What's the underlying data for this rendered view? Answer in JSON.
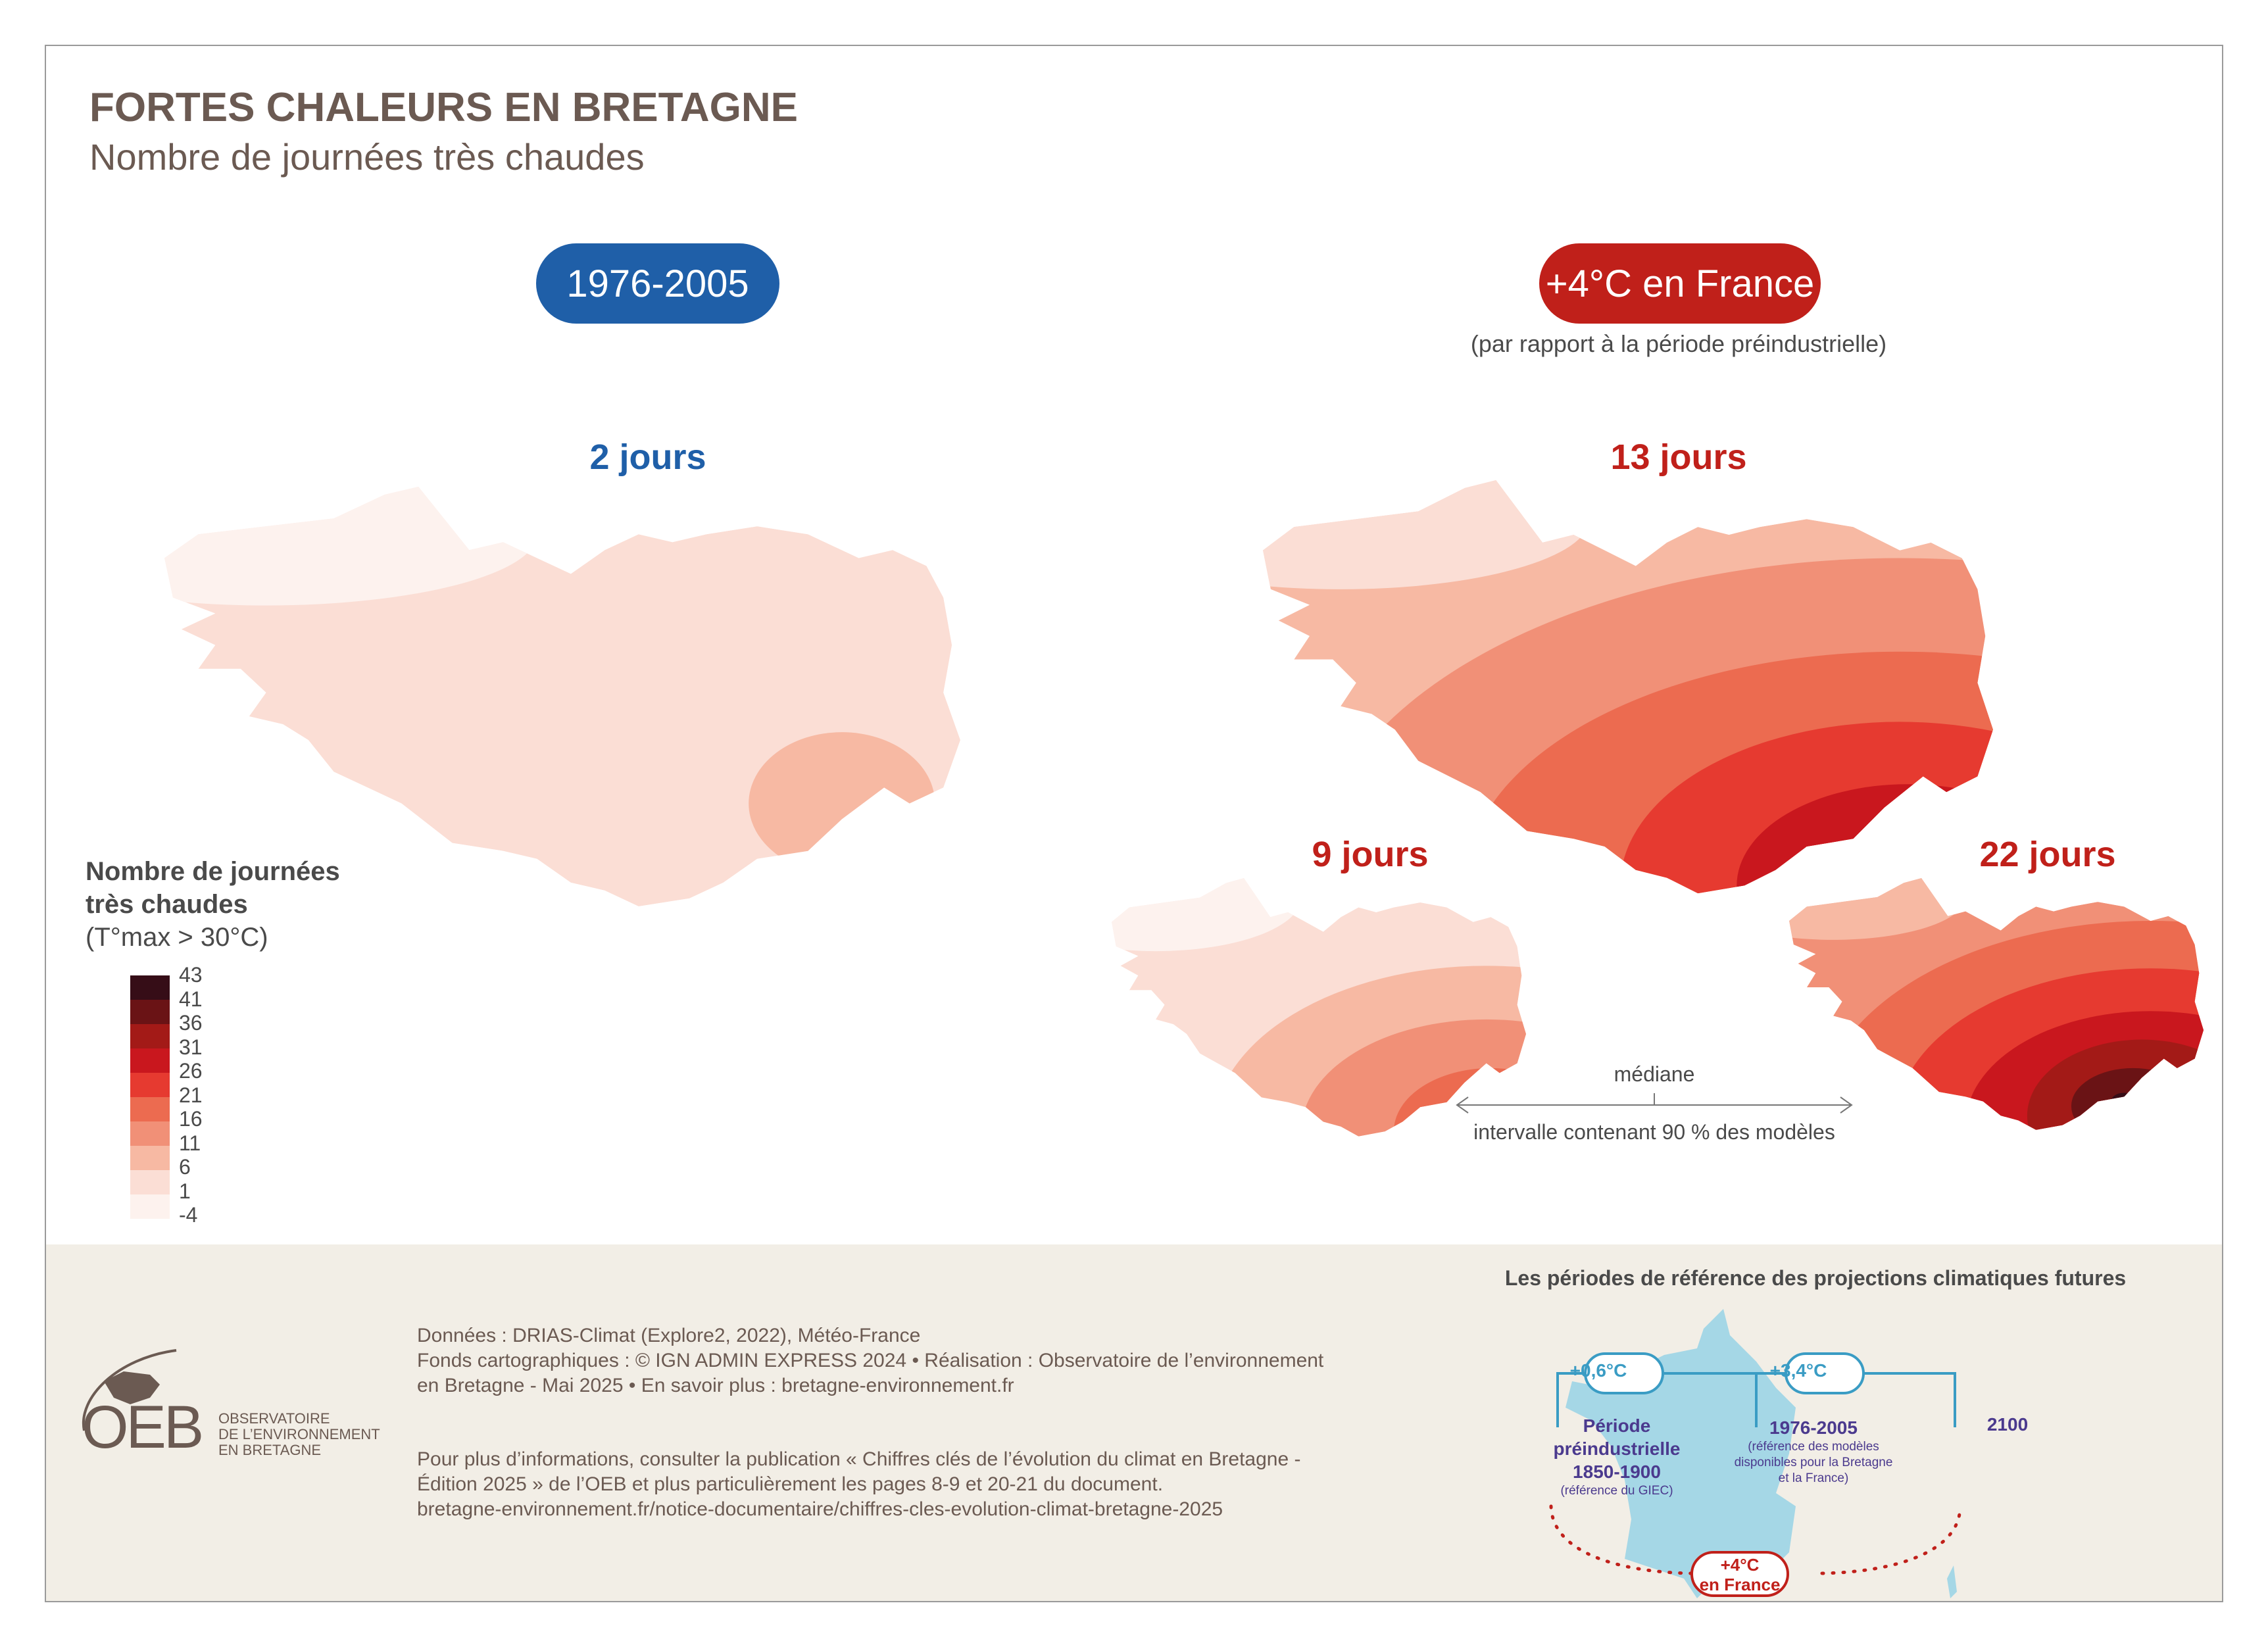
{
  "header": {
    "title": "FORTES CHALEURS EN BRETAGNE",
    "subtitle": "Nombre de journées très chaudes"
  },
  "periods": {
    "reference": {
      "label": "1976-2005",
      "color": "#1f5fa8"
    },
    "future": {
      "label": "+4°C en France",
      "note": "(par rapport à la période préindustrielle)",
      "color": "#c0201a"
    }
  },
  "maps": [
    {
      "label": "2 jours",
      "color": "#1f5fa8",
      "role": "1976-2005"
    },
    {
      "label": "13 jours",
      "color": "#c0201a",
      "role": "médiane"
    },
    {
      "label": "9 jours",
      "color": "#c0201a",
      "role": "borne basse"
    },
    {
      "label": "22 jours",
      "color": "#c0201a",
      "role": "borne haute"
    }
  ],
  "interval": {
    "median": "médiane",
    "range": "intervalle contenant 90 % des modèles"
  },
  "legend": {
    "title_line1": "Nombre de journées",
    "title_line2": "très chaudes",
    "title_line3": "(T°max > 30°C)",
    "breaks": [
      "43",
      "41",
      "36",
      "31",
      "26",
      "21",
      "16",
      "11",
      "6",
      "1",
      "-4"
    ],
    "colors": [
      "#360d17",
      "#6a1315",
      "#a31a17",
      "#c9171e",
      "#e63a30",
      "#ec6b50",
      "#f19077",
      "#f7b9a3",
      "#fbded5",
      "#fdf2ee"
    ]
  },
  "footer": {
    "sources": [
      "Données : DRIAS-Climat (Explore2, 2022), Météo-France",
      "Fonds cartographiques : © IGN ADMIN EXPRESS 2024 • Réalisation : Observatoire de l’environnement",
      "en Bretagne - Mai 2025  • En savoir plus : bretagne-environnement.fr"
    ],
    "info": [
      "Pour plus d’informations, consulter la publication « Chiffres clés de l’évolution du climat en Bretagne -",
      "Édition 2025 » de l’OEB et plus particulièrement les pages 8-9 et 20-21 du document.",
      "bretagne-environnement.fr/notice-documentaire/chiffres-cles-evolution-climat-bretagne-2025"
    ],
    "logo": {
      "mark": "OEB",
      "line1": "OBSERVATOIRE",
      "line2": "DE L’ENVIRONNEMENT",
      "line3": "EN BRETAGNE"
    }
  },
  "diagram": {
    "title": "Les périodes de référence des projections climatiques futures",
    "delta1": "+0,6°C",
    "delta2": "+3,4°C",
    "p1_l1": "Période",
    "p1_l2": "préindustrielle",
    "p1_l3": "1850-1900",
    "p1_note": "(référence du GIEC)",
    "p2": "1976-2005",
    "p2_note1": "(référence des modèles",
    "p2_note2": "disponibles pour la Bretagne",
    "p2_note3": "et la France)",
    "p3": "2100",
    "target_l1": "+4°C",
    "target_l2": "en France",
    "france_color": "#a5d7e6",
    "line_color": "#3a9cc4"
  }
}
